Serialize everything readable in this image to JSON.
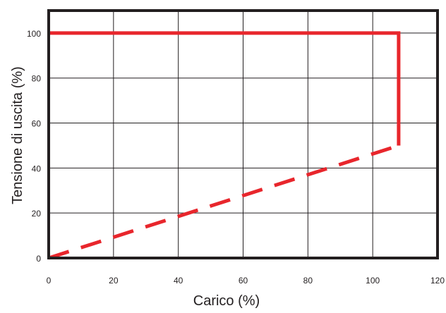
{
  "chart_data": {
    "type": "line",
    "xlabel": "Carico (%)",
    "ylabel": "Tensione di uscita (%)",
    "xlim": [
      0,
      120
    ],
    "ylim": [
      0,
      110
    ],
    "x_ticks": [
      0,
      20,
      40,
      60,
      80,
      100,
      120
    ],
    "y_ticks": [
      0,
      20,
      40,
      60,
      80,
      100
    ],
    "x_tick_labels": [
      "0",
      "20",
      "40",
      "60",
      "80",
      "100",
      "120"
    ],
    "y_tick_labels": [
      "0",
      "20",
      "40",
      "60",
      "80",
      "100"
    ],
    "grid": true,
    "series": [
      {
        "style": "solid",
        "color": "#e8262c",
        "points": [
          [
            0,
            100
          ],
          [
            108,
            100
          ],
          [
            108,
            50
          ]
        ]
      },
      {
        "style": "dashed",
        "color": "#e8262c",
        "points": [
          [
            0,
            0
          ],
          [
            108,
            50
          ]
        ]
      }
    ]
  },
  "colors": {
    "frame": "#231f20",
    "grid": "#231f20",
    "series": "#e8262c"
  }
}
